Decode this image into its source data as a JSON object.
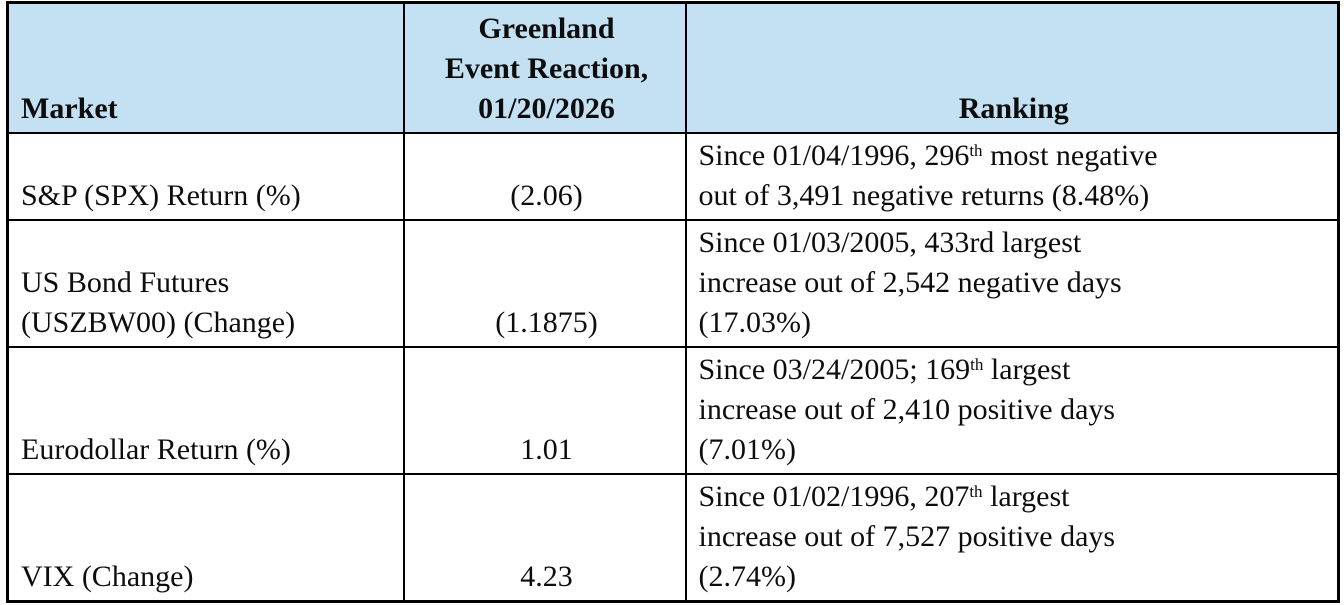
{
  "colors": {
    "header_bg": "#c3e1f3",
    "border": "#000000",
    "text": "#0d0d0d",
    "page_bg": "#ffffff"
  },
  "table": {
    "headers": {
      "market": "Market",
      "reaction": "Greenland\nEvent Reaction,\n01/20/2026",
      "ranking": "Ranking"
    },
    "rows": [
      {
        "market": "S&P (SPX) Return (%)",
        "reaction": "(2.06)",
        "ranking_pre": "Since 01/04/1996, 296",
        "ranking_sup": "th",
        "ranking_post": " most negative\nout of 3,491 negative returns (8.48%)"
      },
      {
        "market": "US Bond Futures\n(USZBW00) (Change)",
        "reaction": "(1.1875)",
        "ranking_pre": "Since 01/03/2005, 433rd largest\nincrease out of 2,542 negative days\n(17.03%)",
        "ranking_sup": "",
        "ranking_post": ""
      },
      {
        "market": "Eurodollar Return (%)",
        "reaction": "1.01",
        "ranking_pre": "Since 03/24/2005; 169",
        "ranking_sup": "th",
        "ranking_post": " largest\nincrease out of 2,410 positive days\n(7.01%)"
      },
      {
        "market": "VIX (Change)",
        "reaction": "4.23",
        "ranking_pre": "Since 01/02/1996, 207",
        "ranking_sup": "th",
        "ranking_post": " largest\nincrease out of 7,527 positive days\n(2.74%)"
      }
    ]
  }
}
